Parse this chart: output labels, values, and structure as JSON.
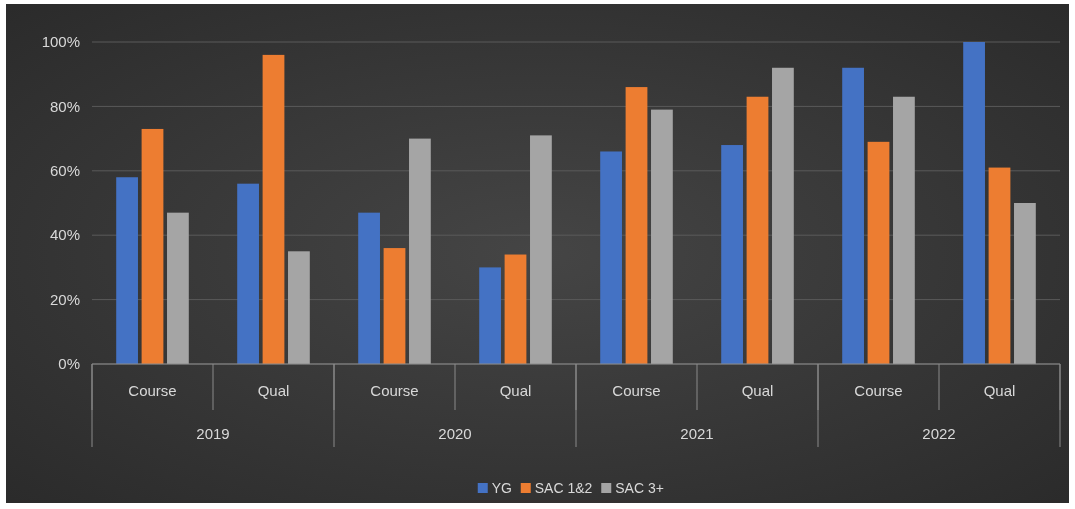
{
  "chart_data": {
    "type": "bar",
    "categories": [
      "Course",
      "Qual",
      "Course",
      "Qual",
      "Course",
      "Qual",
      "Course",
      "Qual"
    ],
    "annotations": [
      "2019",
      "2020",
      "2021",
      "2022"
    ],
    "series": [
      {
        "name": "YG",
        "color": "#4472c4",
        "values": [
          58,
          56,
          47,
          30,
          66,
          68,
          92,
          100
        ]
      },
      {
        "name": "SAC 1&2",
        "color": "#ed7d31",
        "values": [
          73,
          96,
          36,
          34,
          86,
          83,
          69,
          61
        ]
      },
      {
        "name": "SAC 3+",
        "color": "#a5a5a5",
        "values": [
          47,
          35,
          70,
          71,
          79,
          92,
          83,
          50
        ]
      }
    ],
    "ylim": [
      0,
      100
    ],
    "yticks": [
      {
        "value": 0,
        "label": "0%"
      },
      {
        "value": 20,
        "label": "20%"
      },
      {
        "value": 40,
        "label": "40%"
      },
      {
        "value": 60,
        "label": "60%"
      },
      {
        "value": 80,
        "label": "80%"
      },
      {
        "value": 100,
        "label": "100%"
      }
    ],
    "grid": "y",
    "legend": "bottom"
  }
}
